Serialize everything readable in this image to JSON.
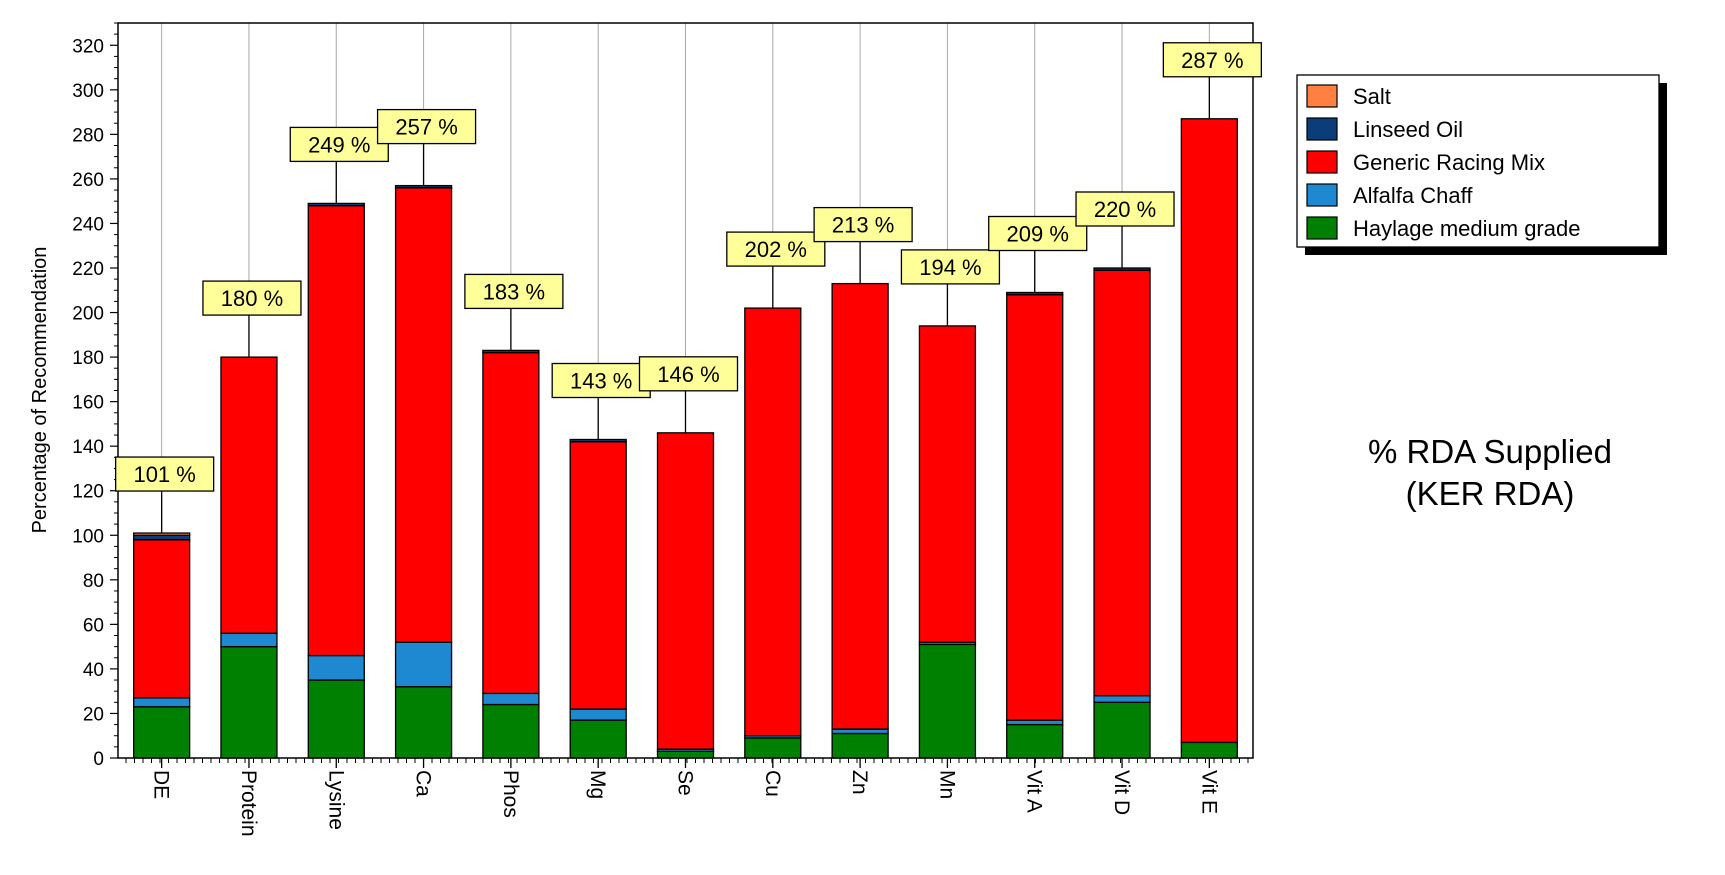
{
  "chart_data": {
    "type": "bar",
    "stacked": true,
    "ylabel": "Percentage of Recommendation",
    "xlabel": "",
    "ylim": [
      0,
      330
    ],
    "yticks": [
      0,
      20,
      40,
      60,
      80,
      100,
      120,
      140,
      160,
      180,
      200,
      220,
      240,
      260,
      280,
      300,
      320
    ],
    "grid": "vertical",
    "categories": [
      "DE",
      "Protein",
      "Lysine",
      "Ca",
      "Phos",
      "Mg",
      "Se",
      "Cu",
      "Zn",
      "Mn",
      "Vit A",
      "Vit D",
      "Vit E"
    ],
    "series": [
      {
        "name": "Haylage medium grade",
        "color": "#008000",
        "values": [
          23,
          50,
          35,
          32,
          24,
          17,
          3,
          9,
          11,
          51,
          15,
          25,
          7
        ]
      },
      {
        "name": "Alfalfa Chaff",
        "color": "#1e88d0",
        "values": [
          4,
          6,
          11,
          20,
          5,
          5,
          1,
          1,
          2,
          1,
          2,
          3,
          0
        ]
      },
      {
        "name": "Generic Racing Mix",
        "color": "#ff0000",
        "values": [
          71,
          124,
          202,
          204,
          153,
          120,
          142,
          192,
          200,
          142,
          191,
          191,
          280
        ]
      },
      {
        "name": "Linseed Oil",
        "color": "#0b3d7a",
        "values": [
          2,
          0,
          1,
          1,
          1,
          1,
          0,
          0,
          0,
          0,
          1,
          1,
          0
        ]
      },
      {
        "name": "Salt",
        "color": "#ff8040",
        "values": [
          1,
          0,
          0,
          0,
          0,
          0,
          0,
          0,
          0,
          0,
          0,
          0,
          0
        ]
      }
    ],
    "totals_labels": [
      "101 %",
      "180 %",
      "249 %",
      "257 %",
      "183 %",
      "143 %",
      "146 %",
      "202 %",
      "213 %",
      "194 %",
      "209 %",
      "220 %",
      "287 %"
    ],
    "totals": [
      101,
      180,
      249,
      257,
      183,
      143,
      146,
      202,
      213,
      194,
      209,
      220,
      287
    ],
    "annotation_color": "#ffff99",
    "legend_position": "top-right",
    "legend_order": [
      "Salt",
      "Linseed Oil",
      "Generic Racing Mix",
      "Alfalfa Chaff",
      "Haylage medium grade"
    ],
    "side_title": [
      "% RDA Supplied",
      "(KER RDA)"
    ]
  }
}
